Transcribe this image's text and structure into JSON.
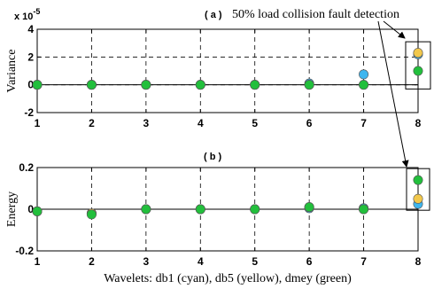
{
  "chart_data": [
    {
      "id": "a",
      "type": "scatter",
      "panel_label": "( a )",
      "annotation": "50% load collision fault detection",
      "exponent_label": "x 10",
      "exponent_power": "-5",
      "ylabel": "Variance",
      "xlim": [
        1,
        8
      ],
      "ylim": [
        -2,
        4
      ],
      "yticks": [
        "-2",
        "0",
        "2",
        "4"
      ],
      "grid": true,
      "x": [
        1,
        2,
        3,
        4,
        5,
        6,
        7,
        8
      ],
      "series": [
        {
          "color": "#3fb6ef",
          "values": [
            0,
            0,
            0,
            0,
            0,
            0.1,
            0.75,
            2.2
          ]
        },
        {
          "color": "#f2c84b",
          "values": [
            0,
            0,
            0,
            0,
            0,
            0,
            0,
            2.3
          ]
        },
        {
          "color": "#22bf3c",
          "values": [
            0,
            0,
            0,
            0,
            0,
            0,
            0,
            1.0
          ]
        }
      ],
      "highlight_box_x": 8
    },
    {
      "id": "b",
      "type": "scatter",
      "panel_label": "( b )",
      "ylabel": "Energy",
      "xlabel": "Wavelets: db1 (cyan), db5 (yellow), dmey (green)",
      "xlim": [
        1,
        8
      ],
      "ylim": [
        -0.2,
        0.2
      ],
      "yticks": [
        "-0.2",
        "0",
        "0.2"
      ],
      "xticks": [
        "1",
        "2",
        "3",
        "4",
        "5",
        "6",
        "7",
        "8"
      ],
      "grid": true,
      "x": [
        1,
        2,
        3,
        4,
        5,
        6,
        7,
        8
      ],
      "series": [
        {
          "color": "#3fb6ef",
          "values": [
            -0.01,
            -0.02,
            0,
            0,
            0,
            0.005,
            0.005,
            0.025
          ]
        },
        {
          "color": "#f2c84b",
          "values": [
            -0.01,
            -0.02,
            0,
            0,
            0,
            0.01,
            0,
            0.05
          ]
        },
        {
          "color": "#22bf3c",
          "values": [
            -0.01,
            -0.025,
            0,
            0,
            0,
            0.01,
            0,
            0.14
          ]
        }
      ],
      "highlight_box_x": 8
    }
  ]
}
